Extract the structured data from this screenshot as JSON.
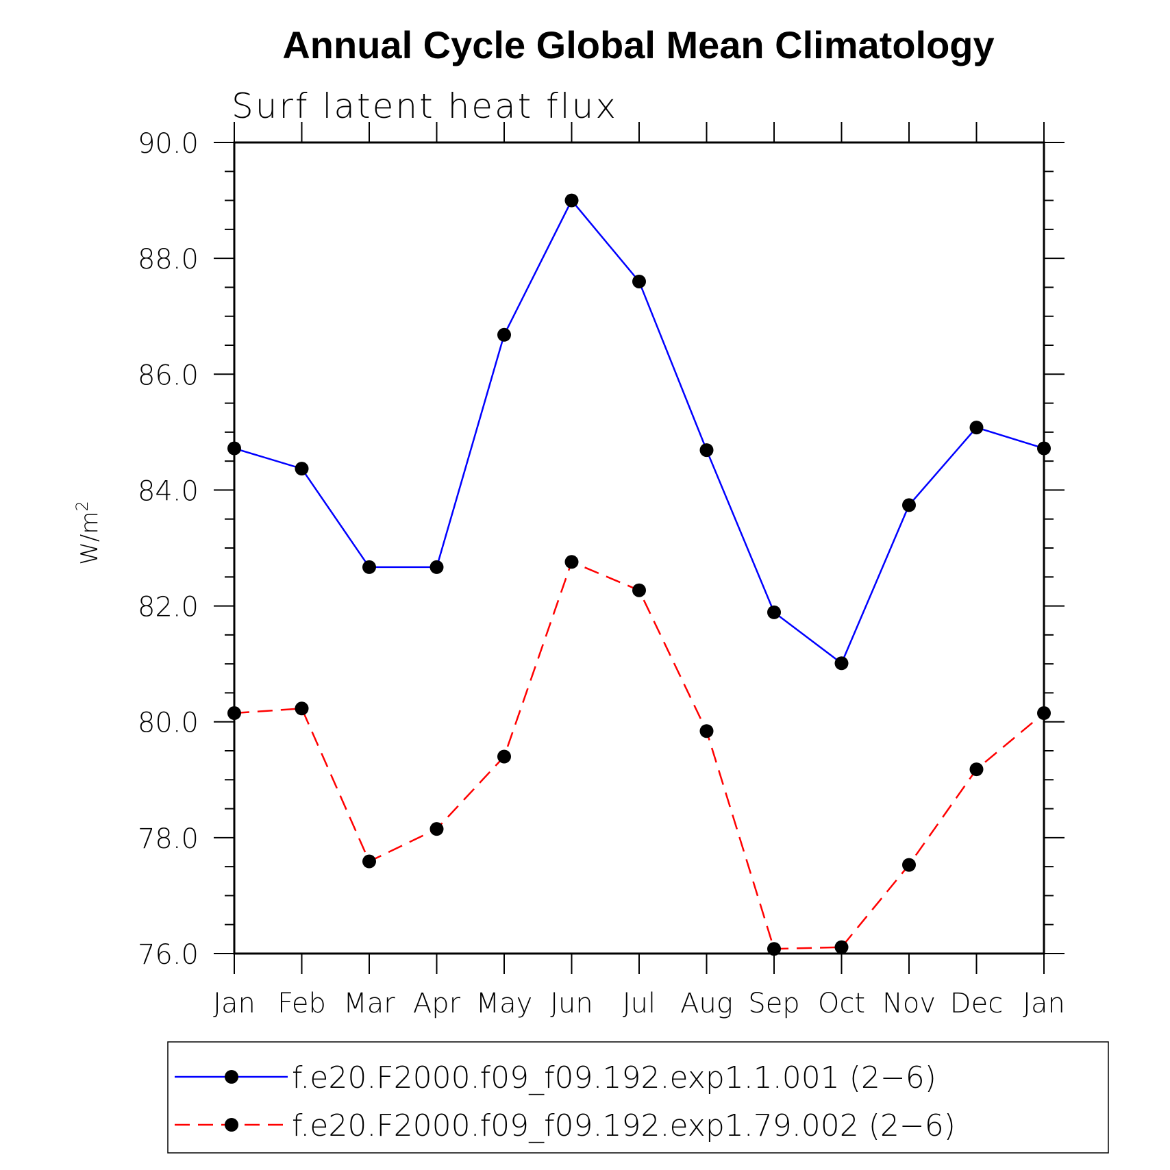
{
  "chart_data": {
    "type": "line",
    "title": "Annual Cycle Global Mean Climatology",
    "subtitle": "Surf latent heat flux",
    "ylabel": "W/m",
    "ylabel_sup": "2",
    "xlabel": "",
    "ylim": [
      76,
      90
    ],
    "yticks": [
      "76.0",
      "78.0",
      "80.0",
      "82.0",
      "84.0",
      "86.0",
      "88.0",
      "90.0"
    ],
    "categories": [
      "Jan",
      "Feb",
      "Mar",
      "Apr",
      "May",
      "Jun",
      "Jul",
      "Aug",
      "Sep",
      "Oct",
      "Nov",
      "Dec",
      "Jan"
    ],
    "grid": false,
    "legend_position": "bottom",
    "series": [
      {
        "name": "f.e20.F2000.f09_f09.192.exp1.1.001 (2−6)",
        "color": "#0000ff",
        "style": "solid",
        "marker": "circle",
        "values": [
          84.72,
          84.37,
          82.67,
          82.67,
          86.68,
          89.0,
          87.6,
          84.69,
          81.89,
          81.01,
          83.74,
          85.08,
          84.72
        ]
      },
      {
        "name": "f.e20.F2000.f09_f09.192.exp1.79.002 (2−6)",
        "color": "#ff0000",
        "style": "dashed",
        "marker": "circle",
        "values": [
          80.15,
          80.23,
          77.59,
          78.15,
          79.4,
          82.76,
          82.27,
          79.84,
          76.08,
          76.11,
          77.53,
          79.18,
          80.15
        ]
      }
    ]
  }
}
